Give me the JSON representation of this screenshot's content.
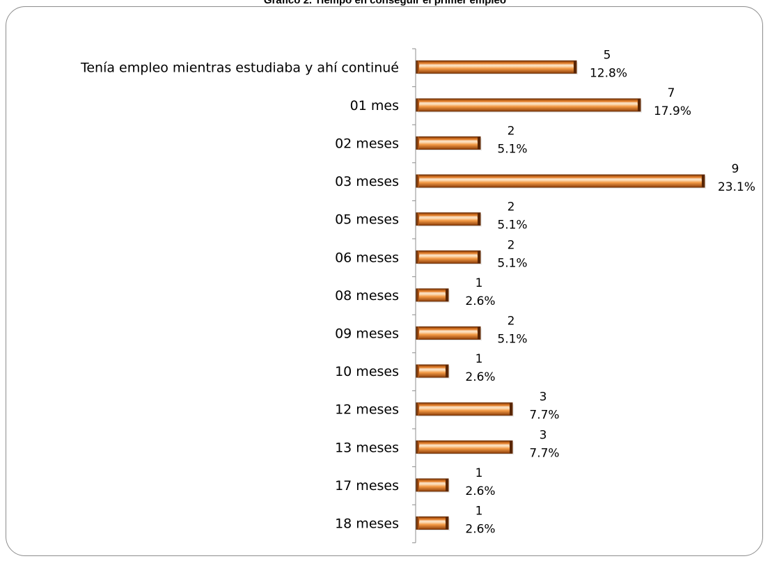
{
  "chart_data": {
    "type": "bar",
    "orientation": "horizontal",
    "title": "Gráfico 2. Tiempo en conseguir el primer empleo",
    "categories": [
      "Tenía empleo mientras estudiaba y ahí continué",
      "01 mes",
      "02 meses",
      "03 meses",
      "05 meses",
      "06 meses",
      "08 meses",
      "09 meses",
      "10 meses",
      "12 meses",
      "13 meses",
      "17 meses",
      "18 meses"
    ],
    "values": [
      5,
      7,
      2,
      9,
      2,
      2,
      1,
      2,
      1,
      3,
      3,
      1,
      1
    ],
    "percent_labels": [
      "12.8%",
      "17.9%",
      "5.1%",
      "23.1%",
      "5.1%",
      "5.1%",
      "2.6%",
      "5.1%",
      "2.6%",
      "7.7%",
      "7.7%",
      "2.6%",
      "2.6%"
    ],
    "xlim": [
      0,
      9
    ],
    "grid": false,
    "legend": "none",
    "colors": {
      "bar_light": "#fbd3a6",
      "bar_mid": "#f28a2e",
      "bar_dark": "#a84a0d",
      "bar_edge": "#6b2e05"
    }
  }
}
